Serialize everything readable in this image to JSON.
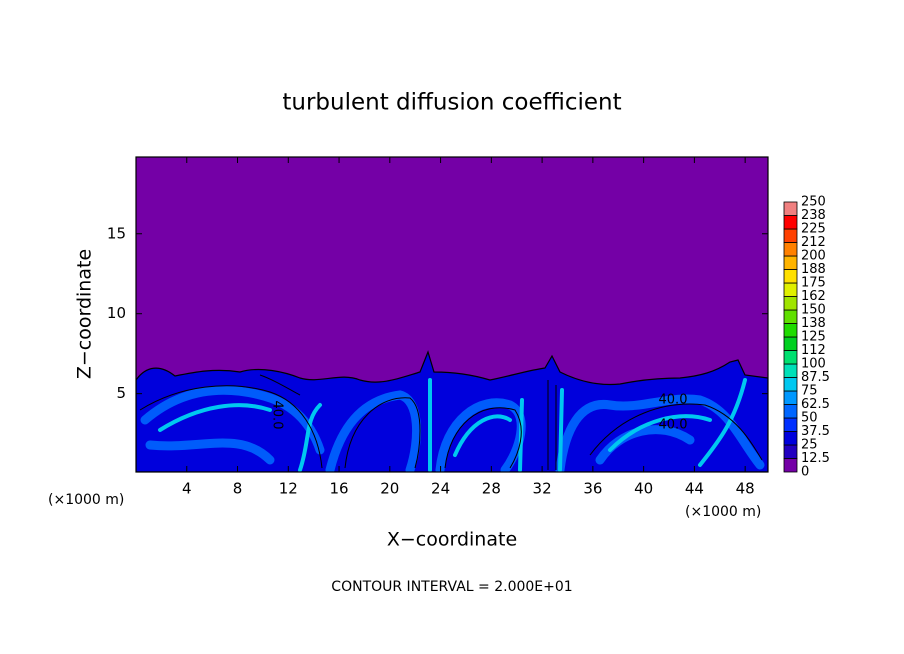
{
  "chart_data": {
    "type": "contour",
    "title": "turbulent diffusion coefficient",
    "xlabel": "X−coordinate",
    "ylabel": "Z−coordinate",
    "x_unit_labels": [
      "(×1000 m)",
      "(×1000 m)"
    ],
    "footer": "CONTOUR INTERVAL = 2.000E+01",
    "xlim": [
      0,
      49.8
    ],
    "xticks": [
      4,
      8,
      12,
      16,
      20,
      24,
      28,
      32,
      36,
      40,
      44,
      48
    ],
    "ylim": [
      0.1,
      19.8
    ],
    "yticks": [
      5,
      10,
      15
    ],
    "contour_labels": [
      "40.0",
      "40.0",
      "40.0"
    ],
    "colorbar": {
      "levels": [
        0,
        12.5,
        25,
        37.5,
        50,
        62.5,
        75,
        87.5,
        100,
        {
          "value": 112.5,
          "label": "112"
        },
        125,
        {
          "value": 137.5,
          "label": "138"
        },
        150,
        {
          "value": 162.5,
          "label": "162"
        },
        175,
        {
          "value": 187.5,
          "label": "188"
        },
        200,
        {
          "value": 212.5,
          "label": "212"
        },
        225,
        {
          "value": 237.5,
          "label": "238"
        },
        250
      ],
      "colors": [
        "#7400a6",
        "#2200c0",
        "#0000dc",
        "#0030ff",
        "#0066ff",
        "#0098ff",
        "#00c8f0",
        "#00e0b8",
        "#00e070",
        "#00d020",
        "#20dc00",
        "#60e000",
        "#a0e400",
        "#e0f000",
        "#ffe000",
        "#ffb400",
        "#ff8000",
        "#ff4000",
        "#ff0000",
        "#f08080"
      ]
    }
  }
}
